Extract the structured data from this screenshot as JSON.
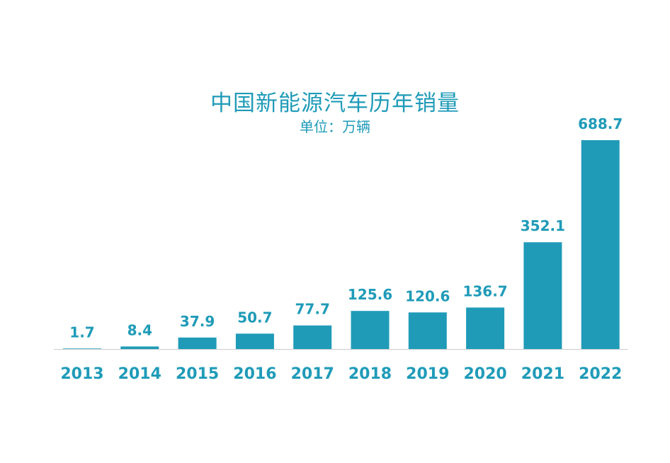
{
  "chart_data": {
    "type": "bar",
    "title": "中国新能源汽车历年销量",
    "subtitle": "单位：万辆",
    "categories": [
      "2013",
      "2014",
      "2015",
      "2016",
      "2017",
      "2018",
      "2019",
      "2020",
      "2021",
      "2022"
    ],
    "values": [
      1.7,
      8.4,
      37.9,
      50.7,
      77.7,
      125.6,
      120.6,
      136.7,
      352.1,
      688.7
    ],
    "value_labels": [
      "1.7",
      "8.4",
      "37.9",
      "50.7",
      "77.7",
      "125.6",
      "120.6",
      "136.7",
      "352.1",
      "688.7"
    ],
    "ylim": [
      0,
      688.7
    ],
    "grid": false,
    "legend": "none",
    "colors": {
      "bar": "#1f9bb8",
      "text": "#1f9bb8",
      "axis": "#cccccc"
    }
  }
}
